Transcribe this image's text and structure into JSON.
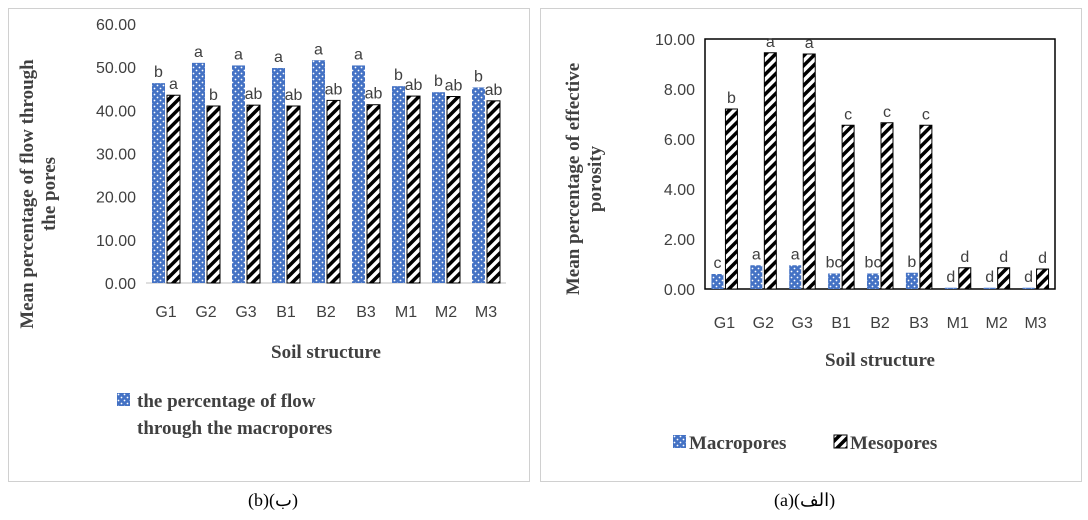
{
  "captions": {
    "b": "(b)(ب)",
    "a": "(a)(الف)"
  },
  "colors": {
    "macro": "#4472c4",
    "meso_stroke": "#000000"
  },
  "chart_data": [
    {
      "id": "b",
      "type": "bar",
      "title": "",
      "xlabel": "Soil structure",
      "ylabel_lines": [
        "Mean percentage of flow through",
        "the pores"
      ],
      "categories": [
        "G1",
        "G2",
        "G3",
        "B1",
        "B2",
        "B3",
        "M1",
        "M2",
        "M3"
      ],
      "ylim": [
        0,
        60
      ],
      "ytick_labels": [
        "0.00",
        "10.00",
        "20.00",
        "30.00",
        "40.00",
        "50.00",
        "60.00"
      ],
      "grid": false,
      "legend_position": "bottom",
      "legend_lines": [
        "the percentage of flow",
        "through the macropores"
      ],
      "series": [
        {
          "name": "the percentage of flow through the macropores",
          "pattern": "dots",
          "values": [
            46.3,
            51.0,
            50.4,
            49.8,
            51.6,
            50.4,
            45.6,
            44.2,
            45.3
          ],
          "letters": [
            "b",
            "a",
            "a",
            "a",
            "a",
            "a",
            "b",
            "b",
            "b"
          ]
        },
        {
          "pattern": "stripes",
          "values": [
            43.5,
            41.0,
            41.2,
            41.0,
            42.3,
            41.3,
            43.3,
            43.2,
            42.2
          ],
          "letters": [
            "a",
            "b",
            "ab",
            "ab",
            "ab",
            "ab",
            "ab",
            "ab",
            "ab"
          ]
        }
      ]
    },
    {
      "id": "a",
      "type": "bar",
      "title": "",
      "xlabel": "Soil structure",
      "ylabel_lines": [
        "Mean percentage of effective",
        "porosity"
      ],
      "categories": [
        "G1",
        "G2",
        "G3",
        "B1",
        "B2",
        "B3",
        "M1",
        "M2",
        "M3"
      ],
      "ylim": [
        0,
        10
      ],
      "ytick_labels": [
        "0.00",
        "2.00",
        "4.00",
        "6.00",
        "8.00",
        "10.00"
      ],
      "grid": false,
      "legend_position": "bottom",
      "series": [
        {
          "name": "Macropores",
          "pattern": "dots",
          "values": [
            0.6,
            0.95,
            0.95,
            0.62,
            0.62,
            0.65,
            0.05,
            0.05,
            0.05
          ],
          "letters": [
            "c",
            "a",
            "a",
            "bc",
            "bc",
            "b",
            "d",
            "d",
            "d"
          ]
        },
        {
          "name": "Mesopores",
          "pattern": "stripes",
          "values": [
            7.2,
            9.45,
            9.4,
            6.55,
            6.65,
            6.55,
            0.85,
            0.85,
            0.8
          ],
          "letters": [
            "b",
            "a",
            "a",
            "c",
            "c",
            "c",
            "d",
            "d",
            "d"
          ]
        }
      ]
    }
  ]
}
